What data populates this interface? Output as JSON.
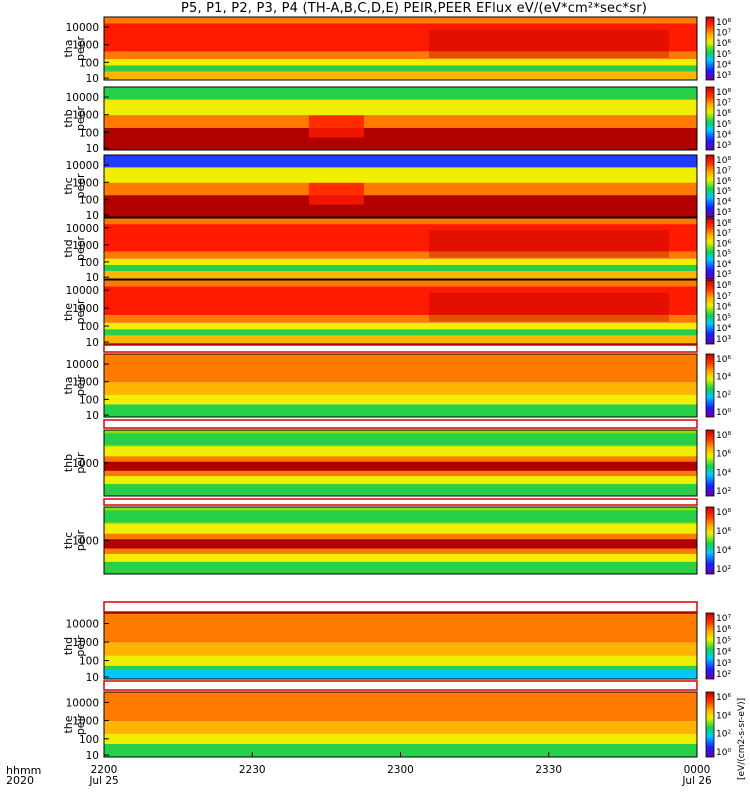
{
  "title": "P5, P1, P2, P3, P4 (TH-A,B,C,D,E) PEIR,PEER EFlux eV/(eV*cm²*sec*sr)",
  "colorbar_unit": "[eV/(cm2-s-sr-eV)]",
  "time_axis": {
    "label_top": "hhmm",
    "label_bottom": "2020",
    "ticks": [
      {
        "t": 0,
        "top": "2200",
        "bottom": "Jul 25"
      },
      {
        "t": 30,
        "top": "2230",
        "bottom": ""
      },
      {
        "t": 60,
        "top": "2300",
        "bottom": ""
      },
      {
        "t": 90,
        "top": "2330",
        "bottom": ""
      },
      {
        "t": 120,
        "top": "0000",
        "bottom": "Jul 26"
      }
    ]
  },
  "chart_data": [
    {
      "type": "heatmap",
      "probe": "tha",
      "species": "peer",
      "ylabel": [
        "tha",
        "peer"
      ],
      "yticks": [
        "10000",
        "1000",
        "100",
        "10"
      ],
      "cb_ticks": [
        "10⁸",
        "10⁷",
        "10⁶",
        "10⁵",
        "10⁴",
        "10³"
      ],
      "xlim_minutes": [
        0,
        120
      ]
    },
    {
      "type": "heatmap",
      "probe": "thb",
      "species": "peer",
      "ylabel": [
        "thb",
        "peer"
      ],
      "yticks": [
        "10000",
        "1000",
        "100",
        "10"
      ],
      "cb_ticks": [
        "10⁸",
        "10⁷",
        "10⁶",
        "10⁵",
        "10⁴",
        "10³"
      ],
      "xlim_minutes": [
        0,
        120
      ]
    },
    {
      "type": "heatmap",
      "probe": "thc",
      "species": "peer",
      "ylabel": [
        "thc",
        "peer"
      ],
      "yticks": [
        "10000",
        "1000",
        "100",
        "10"
      ],
      "cb_ticks": [
        "10⁸",
        "10⁷",
        "10⁶",
        "10⁵",
        "10⁴",
        "10³"
      ],
      "xlim_minutes": [
        0,
        120
      ]
    },
    {
      "type": "heatmap",
      "probe": "thd",
      "species": "peer",
      "ylabel": [
        "thd",
        "peer"
      ],
      "yticks": [
        "10000",
        "1000",
        "100",
        "10"
      ],
      "cb_ticks": [
        "10⁸",
        "10⁷",
        "10⁶",
        "10⁵",
        "10⁴",
        "10³"
      ],
      "xlim_minutes": [
        0,
        120
      ]
    },
    {
      "type": "heatmap",
      "probe": "the",
      "species": "peer",
      "ylabel": [
        "the",
        "peer"
      ],
      "yticks": [
        "10000",
        "1000",
        "100",
        "10"
      ],
      "cb_ticks": [
        "10⁸",
        "10⁷",
        "10⁶",
        "10⁵",
        "10⁴",
        "10³"
      ],
      "xlim_minutes": [
        0,
        120
      ]
    },
    {
      "type": "heatmap",
      "probe": "tha",
      "species": "peir",
      "ylabel": [
        "tha",
        "peir"
      ],
      "yticks": [
        "10000",
        "1000",
        "100",
        "10"
      ],
      "cb_ticks": [
        "10⁶",
        "10⁴",
        "10²",
        "10⁰"
      ],
      "xlim_minutes": [
        0,
        120
      ]
    },
    {
      "type": "heatmap",
      "probe": "thb",
      "species": "peir",
      "ylabel": [
        "thb",
        "peir"
      ],
      "yticks": [
        "1000"
      ],
      "cb_ticks": [
        "10⁸",
        "10⁶",
        "10⁴",
        "10²"
      ],
      "xlim_minutes": [
        0,
        120
      ]
    },
    {
      "type": "heatmap",
      "probe": "thc",
      "species": "peir",
      "ylabel": [
        "thc",
        "peir"
      ],
      "yticks": [
        "1000"
      ],
      "cb_ticks": [
        "10⁸",
        "10⁶",
        "10⁴",
        "10²"
      ],
      "xlim_minutes": [
        0,
        120
      ]
    },
    {
      "type": "heatmap",
      "probe": "thd",
      "species": "peir",
      "ylabel": [
        "thd",
        "peir"
      ],
      "yticks": [
        "10000",
        "1000",
        "100",
        "10"
      ],
      "cb_ticks": [
        "10⁷",
        "10⁶",
        "10⁵",
        "10⁴",
        "10³",
        "10²"
      ],
      "xlim_minutes": [
        0,
        120
      ]
    },
    {
      "type": "heatmap",
      "probe": "the",
      "species": "peir",
      "ylabel": [
        "the",
        "peir"
      ],
      "yticks": [
        "10000",
        "1000",
        "100",
        "10"
      ],
      "cb_ticks": [
        "10⁶",
        "10⁴",
        "10²",
        "10⁰"
      ],
      "xlim_minutes": [
        0,
        120
      ]
    }
  ]
}
